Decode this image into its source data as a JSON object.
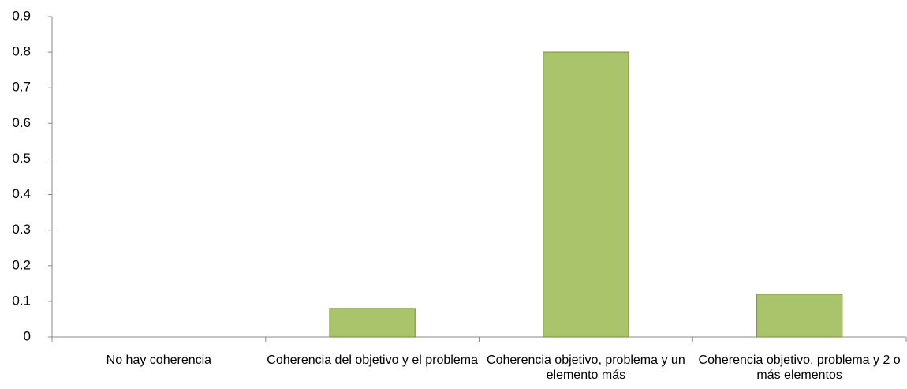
{
  "chart_data": {
    "type": "bar",
    "categories": [
      "No hay coherencia",
      "Coherencia del objetivo y el problema",
      "Coherencia objetivo, problema y un elemento más",
      "Coherencia objetivo, problema y 2 o más elementos"
    ],
    "values": [
      0,
      0.08,
      0.8,
      0.12
    ],
    "color": "#a9c46a",
    "ylim": [
      0,
      0.9
    ],
    "yticks": [
      0,
      0.1,
      0.2,
      0.3,
      0.4,
      0.5,
      0.6,
      0.7,
      0.8,
      0.9
    ],
    "grid": false
  }
}
